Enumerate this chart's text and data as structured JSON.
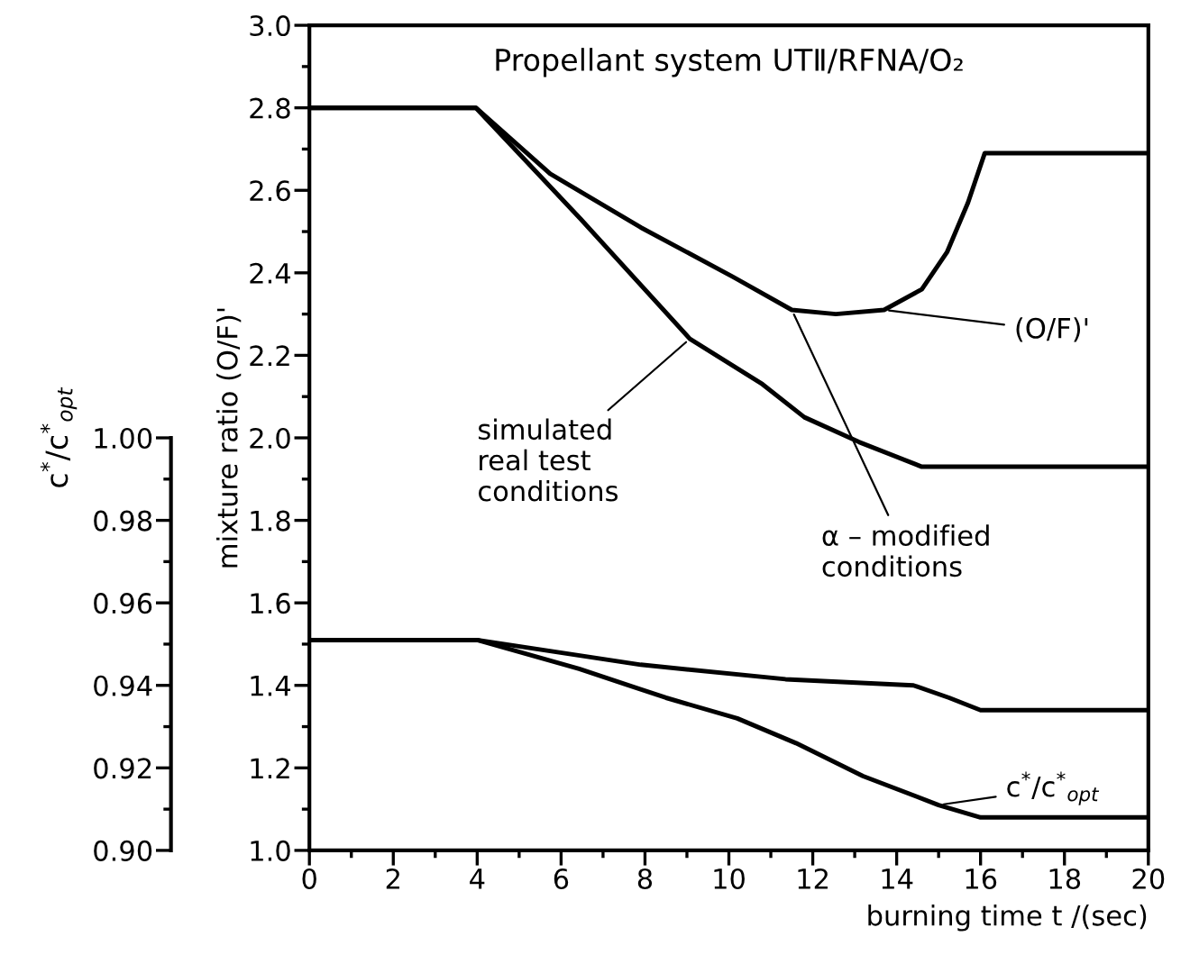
{
  "chart_data": {
    "type": "line",
    "title": "Propellant system UTⅡ/RFNA/O₂",
    "xlabel": "burning time t /(sec)",
    "ylabel": "mixture ratio (O/F)'",
    "y2label": "c$^{*}$/c$^{*}$$_{opt}$",
    "xlim": [
      0,
      20
    ],
    "xticks": [
      0,
      {
        "value": 1,
        "label": null
      },
      2,
      {
        "value": 3,
        "label": null
      },
      4,
      {
        "value": 5,
        "label": null
      },
      6,
      {
        "value": 7,
        "label": null
      },
      8,
      {
        "value": 9,
        "label": null
      },
      10,
      {
        "value": 11,
        "label": null
      },
      12,
      {
        "value": 13,
        "label": null
      },
      14,
      {
        "value": 15,
        "label": null
      },
      16,
      {
        "value": 17,
        "label": null
      },
      18,
      {
        "value": 19,
        "label": null
      },
      20
    ],
    "ylim": [
      1.0,
      3.0
    ],
    "yticks": [
      {
        "value": 1.0,
        "label": "1.0"
      },
      {
        "value": 1.1,
        "label": null
      },
      {
        "value": 1.2,
        "label": "1.2"
      },
      {
        "value": 1.3,
        "label": null
      },
      {
        "value": 1.4,
        "label": "1.4"
      },
      {
        "value": 1.5,
        "label": null
      },
      {
        "value": 1.6,
        "label": "1.6"
      },
      {
        "value": 1.7,
        "label": null
      },
      {
        "value": 1.8,
        "label": "1.8"
      },
      {
        "value": 1.9,
        "label": null
      },
      {
        "value": 2.0,
        "label": "2.0"
      },
      {
        "value": 2.1,
        "label": null
      },
      {
        "value": 2.2,
        "label": "2.2"
      },
      {
        "value": 2.3,
        "label": null
      },
      {
        "value": 2.4,
        "label": "2.4"
      },
      {
        "value": 2.5,
        "label": null
      },
      {
        "value": 2.6,
        "label": "2.6"
      },
      {
        "value": 2.7,
        "label": null
      },
      {
        "value": 2.8,
        "label": "2.8"
      },
      {
        "value": 2.9,
        "label": null
      },
      {
        "value": 3.0,
        "label": "3.0"
      }
    ],
    "y2lim": [
      0.9,
      1.1
    ],
    "y2ticks": [
      {
        "value": 0.9,
        "label": "0.90"
      },
      {
        "value": 0.91,
        "label": null
      },
      {
        "value": 0.92,
        "label": "0.92"
      },
      {
        "value": 0.93,
        "label": null
      },
      {
        "value": 0.94,
        "label": "0.94"
      },
      {
        "value": 0.95,
        "label": null
      },
      {
        "value": 0.96,
        "label": "0.96"
      },
      {
        "value": 0.97,
        "label": null
      },
      {
        "value": 0.98,
        "label": "0.98"
      },
      {
        "value": 0.99,
        "label": null
      },
      {
        "value": 1.0,
        "label": "1.00"
      }
    ],
    "line_style": "solid",
    "series": [
      {
        "color": "#000000",
        "x": [
          0,
          3.97,
          5.74,
          7.9,
          10.1,
          11.5,
          12.55,
          13.7,
          14.6,
          15.2,
          15.7,
          16.1,
          20
        ],
        "values": [
          2.8,
          2.8,
          2.64,
          2.51,
          2.39,
          2.31,
          2.3,
          2.31,
          2.36,
          2.45,
          2.57,
          2.69,
          2.69
        ]
      },
      {
        "color": "#000000",
        "x": [
          0,
          3.97,
          6.47,
          9.07,
          10.8,
          11.8,
          13.1,
          14.6,
          20
        ],
        "values": [
          2.8,
          2.8,
          2.53,
          2.24,
          2.13,
          2.05,
          1.99,
          1.93,
          1.93
        ]
      },
      {
        "color": "#000000",
        "axis": "y2",
        "x": [
          0,
          4.0,
          7.9,
          11.35,
          14.4,
          15.25,
          16.0,
          20
        ],
        "values": [
          0.951,
          0.951,
          0.945,
          0.9415,
          0.94,
          0.937,
          0.934,
          0.934
        ]
      },
      {
        "color": "#000000",
        "axis": "y2",
        "x": [
          0,
          4.0,
          6.43,
          8.5,
          10.2,
          11.6,
          13.2,
          15.0,
          16.0,
          20
        ],
        "values": [
          0.951,
          0.951,
          0.944,
          0.937,
          0.932,
          0.926,
          0.918,
          0.911,
          0.908,
          0.908
        ]
      }
    ],
    "annotations": [
      {
        "text": "simulated\nreal test\nconditions",
        "x": 9.07,
        "y": 2.24
      },
      {
        "text": "α – modified\nconditions",
        "x": 11.5,
        "y": 2.31
      },
      {
        "text": "(O/F)'",
        "x": 13.7,
        "y": 2.31
      },
      {
        "text": "c$^{*}$/c$^{*}$$_{opt}$",
        "x": 15.0,
        "y": 1.11
      }
    ]
  }
}
